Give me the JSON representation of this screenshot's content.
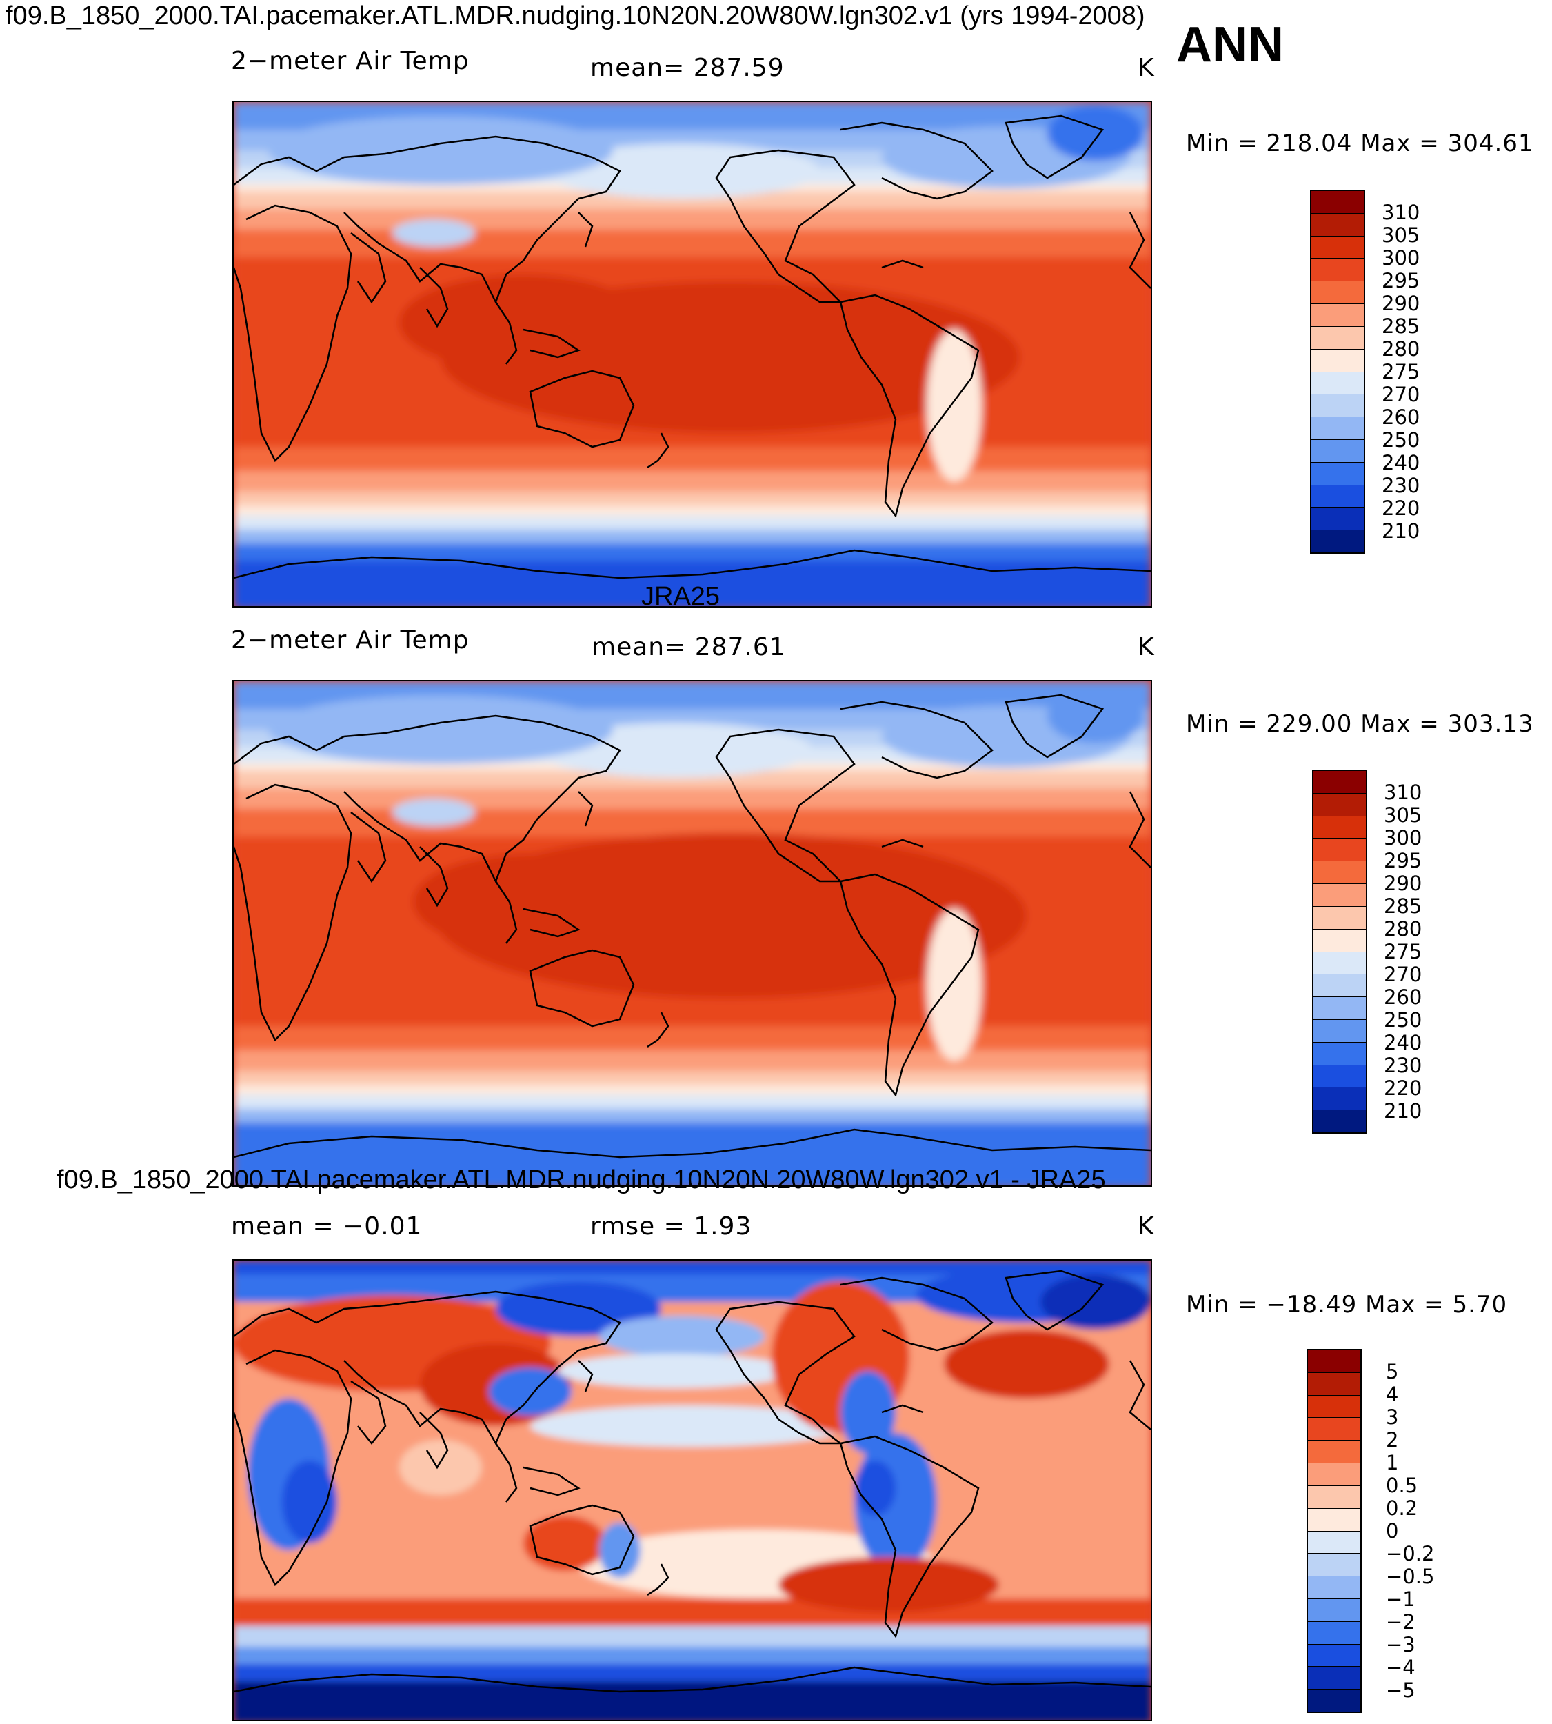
{
  "page": {
    "title": "f09.B_1850_2000.TAI.pacemaker.ATL.MDR.nudging.10N20N.20W80W.lgn302.v1 (yrs 1994-2008)",
    "season": "ANN"
  },
  "panels": [
    {
      "heading": "",
      "left_label": "2−meter Air Temp",
      "center_label": "mean=  287.59",
      "units": "K",
      "minmax": "Min  =  218.04  Max  =  304.61",
      "colorbar_levels": [
        "310",
        "305",
        "300",
        "295",
        "290",
        "285",
        "280",
        "275",
        "270",
        "260",
        "250",
        "240",
        "230",
        "220",
        "210"
      ],
      "colorbar_colors": [
        "#8b0000",
        "#b31c05",
        "#d7300a",
        "#e8461f",
        "#f46a3c",
        "#fb9d7a",
        "#fcc7ad",
        "#feeadd",
        "#dbe8f8",
        "#bcd3f5",
        "#93b7f4",
        "#6296f0",
        "#3572ec",
        "#1a4fe0",
        "#0a2fb8",
        "#001980"
      ]
    },
    {
      "heading": "JRA25",
      "left_label": "2−meter Air Temp",
      "center_label": "mean=  287.61",
      "units": "K",
      "minmax": "Min  =  229.00  Max  =  303.13",
      "colorbar_levels": [
        "310",
        "305",
        "300",
        "295",
        "290",
        "285",
        "280",
        "275",
        "270",
        "260",
        "250",
        "240",
        "230",
        "220",
        "210"
      ],
      "colorbar_colors": [
        "#8b0000",
        "#b31c05",
        "#d7300a",
        "#e8461f",
        "#f46a3c",
        "#fb9d7a",
        "#fcc7ad",
        "#feeadd",
        "#dbe8f8",
        "#bcd3f5",
        "#93b7f4",
        "#6296f0",
        "#3572ec",
        "#1a4fe0",
        "#0a2fb8",
        "#001980"
      ]
    },
    {
      "heading": "f09.B_1850_2000.TAI.pacemaker.ATL.MDR.nudging.10N20N.20W80W.lgn302.v1 - JRA25",
      "left_label": "mean =   −0.01",
      "center_label": "rmse =     1.93",
      "units": "K",
      "minmax": "Min  =  −18.49  Max  =     5.70",
      "colorbar_levels": [
        "5",
        "4",
        "3",
        "2",
        "1",
        "0.5",
        "0.2",
        "0",
        "−0.2",
        "−0.5",
        "−1",
        "−2",
        "−3",
        "−4",
        "−5"
      ],
      "colorbar_colors": [
        "#8b0000",
        "#b31c05",
        "#d7300a",
        "#e8461f",
        "#f46a3c",
        "#fb9d7a",
        "#fcc7ad",
        "#feeadd",
        "#dbe8f8",
        "#bcd3f5",
        "#93b7f4",
        "#6296f0",
        "#3572ec",
        "#1a4fe0",
        "#0a2fb8",
        "#001980"
      ]
    }
  ]
}
